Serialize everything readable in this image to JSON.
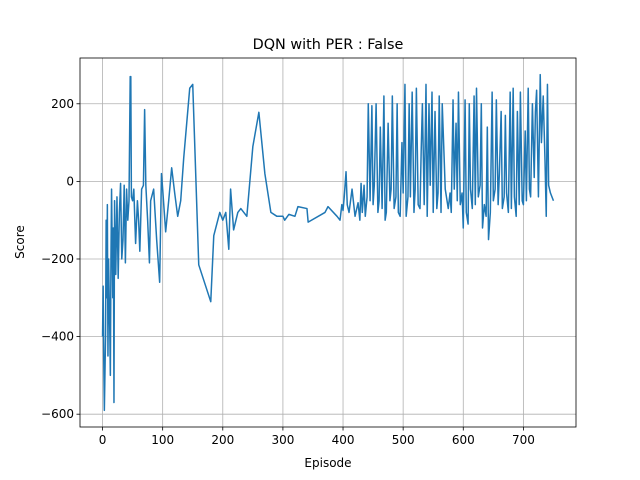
{
  "chart_data": {
    "type": "line",
    "title": "DQN with PER : False",
    "xlabel": "Episode",
    "ylabel": "Score",
    "xlim": [
      -37.5,
      787.5
    ],
    "ylim": [
      -633,
      318
    ],
    "xticks": [
      0,
      100,
      200,
      300,
      400,
      500,
      600,
      700
    ],
    "yticks": [
      {
        "value": -600,
        "label": "−600"
      },
      {
        "value": -400,
        "label": "−400"
      },
      {
        "value": -200,
        "label": "−200"
      },
      0,
      200
    ],
    "grid": true,
    "series": [
      {
        "color": "#1f77b4",
        "x": [
          0,
          1,
          2,
          3,
          5,
          6,
          7,
          8,
          9,
          10,
          12,
          13,
          14,
          15,
          17,
          18,
          19,
          20,
          22,
          24,
          26,
          28,
          30,
          32,
          34,
          36,
          38,
          40,
          42,
          44,
          46,
          47,
          48,
          50,
          52,
          55,
          58,
          60,
          62,
          65,
          68,
          70,
          72,
          75,
          78,
          80,
          85,
          90,
          95,
          98,
          100,
          105,
          110,
          115,
          120,
          125,
          130,
          135,
          145,
          150,
          160,
          180,
          185,
          195,
          200,
          205,
          210,
          213,
          218,
          225,
          230,
          240,
          250,
          260,
          270,
          280,
          290,
          300,
          303,
          310,
          320,
          325,
          340,
          342,
          370,
          375,
          390,
          395,
          398,
          400,
          402,
          405,
          407,
          410,
          415,
          420,
          425,
          428,
          430,
          432,
          435,
          437,
          440,
          442,
          445,
          448,
          450,
          452,
          455,
          458,
          460,
          462,
          465,
          468,
          470,
          472,
          475,
          478,
          480,
          482,
          485,
          488,
          490,
          492,
          495,
          498,
          500,
          503,
          505,
          508,
          510,
          512,
          515,
          518,
          520,
          522,
          525,
          528,
          530,
          532,
          535,
          538,
          540,
          543,
          545,
          548,
          550,
          553,
          556,
          558,
          560,
          563,
          565,
          570,
          575,
          578,
          580,
          583,
          585,
          588,
          590,
          592,
          595,
          598,
          600,
          603,
          605,
          608,
          610,
          612,
          615,
          618,
          620,
          622,
          625,
          628,
          630,
          632,
          635,
          638,
          640,
          642,
          645,
          648,
          650,
          653,
          655,
          658,
          660,
          663,
          665,
          668,
          670,
          672,
          675,
          678,
          680,
          683,
          685,
          688,
          690,
          693,
          695,
          698,
          700,
          703,
          705,
          708,
          710,
          712,
          715,
          718,
          720,
          722,
          725,
          728,
          730,
          733,
          736,
          738,
          740,
          742,
          745,
          750
        ],
        "values": [
          -400,
          -270,
          -460,
          -590,
          -400,
          -100,
          -300,
          -60,
          -450,
          -200,
          -380,
          -500,
          -200,
          -20,
          -300,
          -120,
          -570,
          -50,
          -240,
          -40,
          -250,
          -80,
          -5,
          -200,
          -150,
          -10,
          -210,
          -20,
          -100,
          -50,
          270,
          270,
          -40,
          -50,
          -20,
          -160,
          -50,
          -100,
          -180,
          -20,
          -10,
          185,
          -10,
          -100,
          -210,
          -50,
          -20,
          -150,
          -260,
          20,
          -20,
          -130,
          -50,
          35,
          -30,
          -90,
          -50,
          60,
          240,
          250,
          -215,
          -310,
          -140,
          -80,
          -100,
          -80,
          -175,
          -20,
          -125,
          -80,
          -70,
          -90,
          90,
          178,
          20,
          -80,
          -90,
          -90,
          -100,
          -85,
          -90,
          -65,
          -70,
          -105,
          -80,
          -65,
          -90,
          -100,
          -60,
          -75,
          -40,
          25,
          -60,
          -80,
          -20,
          -90,
          -55,
          -100,
          -5,
          -80,
          -10,
          -90,
          -40,
          200,
          -50,
          195,
          -60,
          -10,
          200,
          -80,
          -50,
          140,
          -70,
          220,
          -100,
          -80,
          150,
          -50,
          -20,
          220,
          -70,
          -40,
          200,
          -80,
          -90,
          100,
          -30,
          250,
          -90,
          -40,
          200,
          -40,
          230,
          -80,
          -20,
          240,
          -60,
          -70,
          80,
          200,
          -60,
          250,
          -90,
          200,
          -10,
          230,
          -80,
          180,
          -70,
          -30,
          220,
          -80,
          200,
          -20,
          -70,
          -30,
          -80,
          210,
          -20,
          150,
          -50,
          230,
          -60,
          -30,
          -120,
          210,
          -80,
          -110,
          200,
          -20,
          -70,
          220,
          -60,
          240,
          -40,
          -10,
          200,
          -120,
          -60,
          -90,
          140,
          -150,
          -80,
          230,
          -50,
          -20,
          210,
          -60,
          20,
          180,
          -70,
          -40,
          170,
          -30,
          -80,
          230,
          -70,
          240,
          -40,
          -90,
          180,
          -60,
          230,
          -50,
          -60,
          130,
          -50,
          240,
          -20,
          -40,
          200,
          10,
          180,
          235,
          -40,
          275,
          100,
          220,
          50,
          -90,
          250,
          -10,
          -30,
          -50
        ]
      }
    ]
  }
}
